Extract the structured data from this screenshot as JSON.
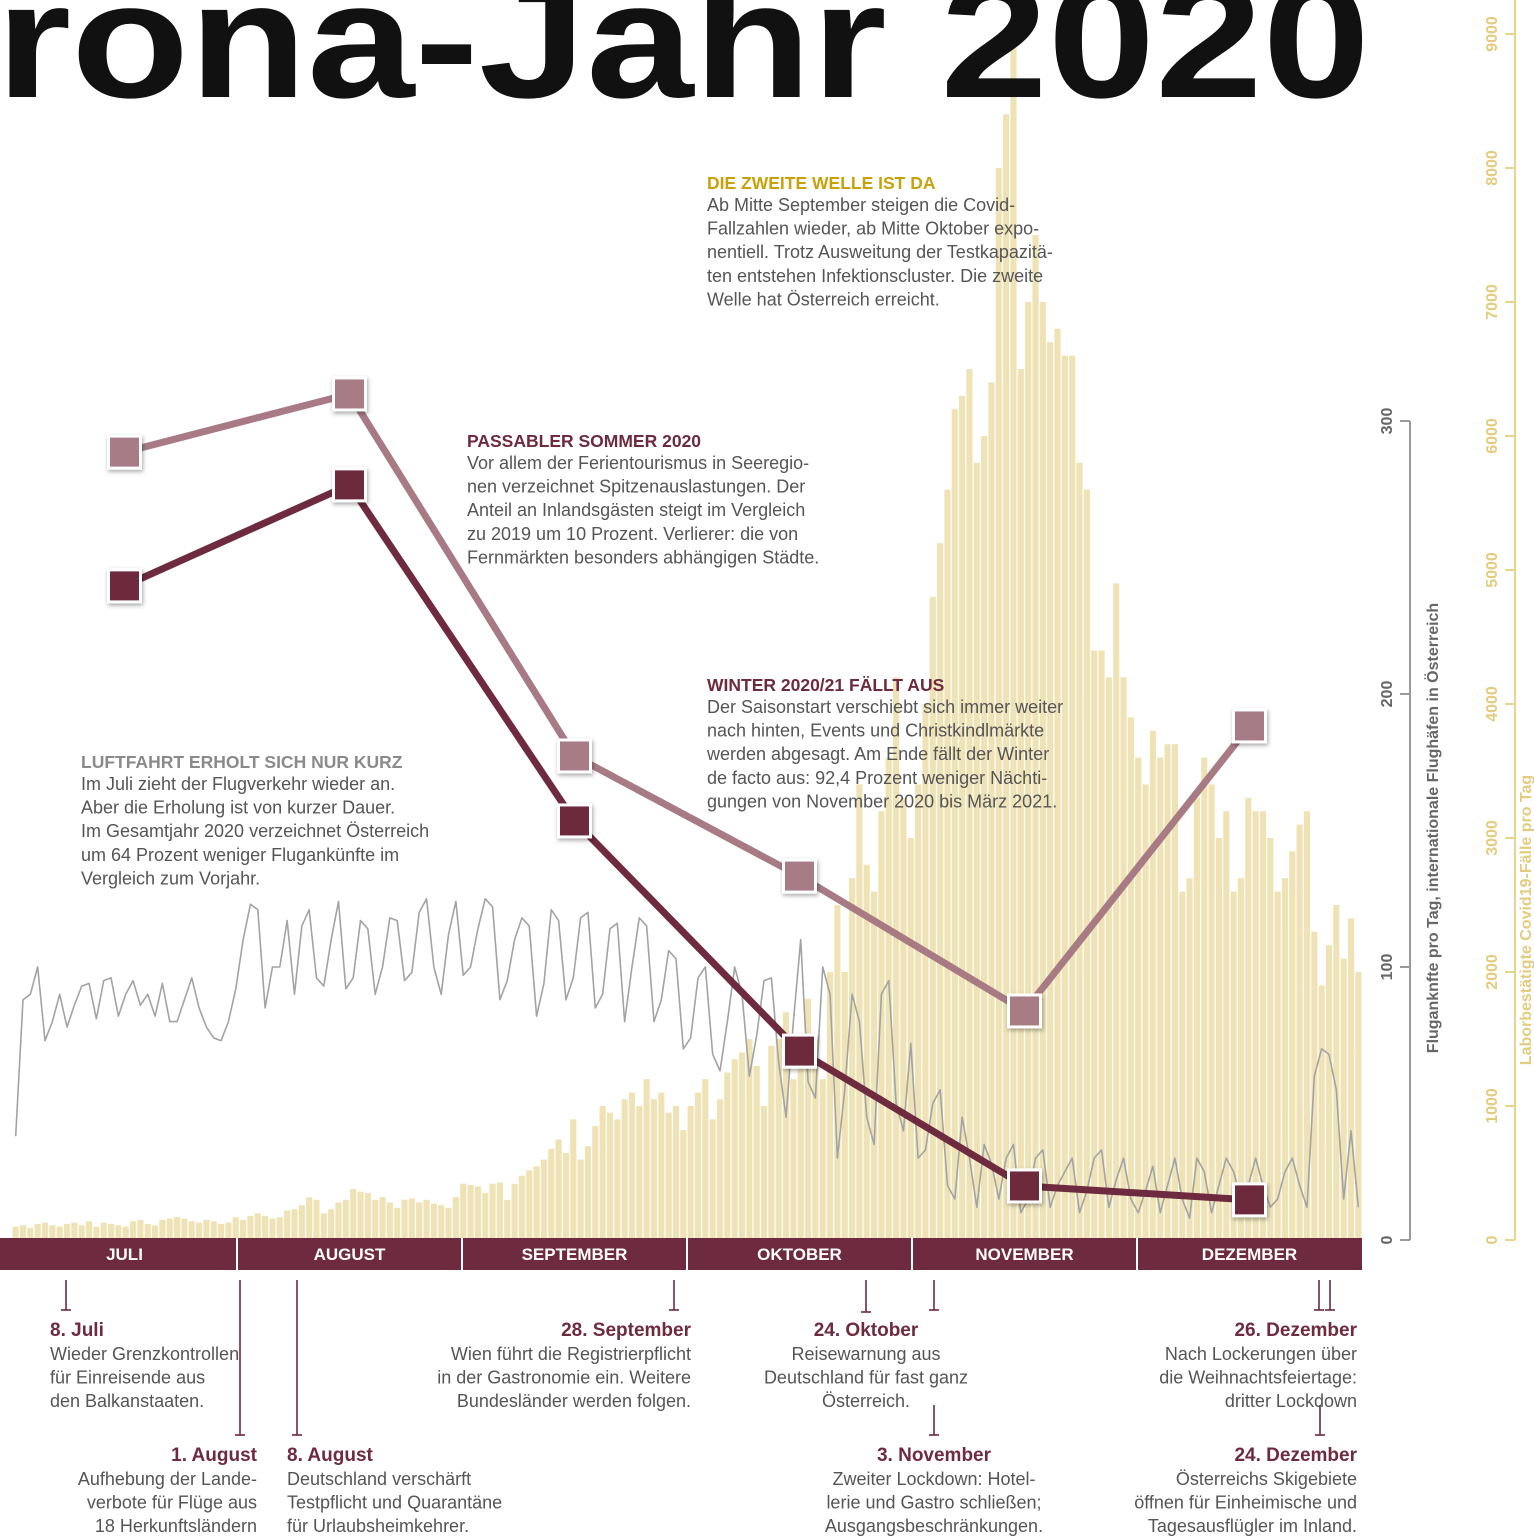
{
  "title": "rona-Jahr 2020",
  "annotations": [
    {
      "title": "DIE ZWEITE WELLE IST DA",
      "lines": [
        "Ab Mitte September steigen die Covid-",
        "Fallzahlen wieder, ab Mitte Oktober expo-",
        "nentiell. Trotz Ausweitung der Testkapazitä-",
        "ten entstehen Infektionscluster. Die zweite",
        "Welle hat Österreich erreicht."
      ]
    },
    {
      "title": "PASSABLER SOMMER 2020",
      "lines": [
        "Vor allem der Ferientourismus in Seeregio-",
        "nen verzeichnet Spitzenauslastungen. Der",
        "Anteil an Inlandsgästen steigt im Vergleich",
        "zu 2019 um 10 Prozent. Verlierer: die von",
        "Fernmärkten besonders abhängigen Städte."
      ]
    },
    {
      "title": "WINTER 2020/21 FÄLLT AUS",
      "lines": [
        "Der Saisonstart verschiebt sich immer weiter",
        "nach hinten, Events und Christkindlmärkte",
        "werden abgesagt. Am Ende fällt der Winter",
        "de facto aus: 92,4 Prozent weniger Nächti-",
        "gungen von November 2020 bis März 2021."
      ]
    },
    {
      "title": "LUFTFAHRT ERHOLT SICH NUR KURZ",
      "lines": [
        "Im Juli zieht der Flugverkehr wieder an.",
        "Aber die Erholung ist von kurzer Dauer.",
        "Im Gesamtjahr 2020 verzeichnet Österreich",
        "um 64 Prozent weniger Flugankünfte im",
        "Vergleich zum Vorjahr."
      ]
    }
  ],
  "events": [
    {
      "date": "8. Juli",
      "lines": [
        "Wieder Grenzkontrollen",
        "für Einreisende aus",
        "den Balkanstaaten."
      ]
    },
    {
      "date": "1. August",
      "lines": [
        "Aufhebung der Lande-",
        "verbote für Flüge aus",
        "18 Herkunftsländern"
      ]
    },
    {
      "date": "8. August",
      "lines": [
        "Deutschland verschärft",
        "Testpflicht und Quarantäne",
        "für Urlaubsheimkehrer."
      ]
    },
    {
      "date": "28. September",
      "lines": [
        "Wien führt die Registrierpflicht",
        "in der Gastronomie ein. Weitere",
        "Bundesländer werden folgen."
      ]
    },
    {
      "date": "24. Oktober",
      "lines": [
        "Reisewarnung aus",
        "Deutschland für fast ganz",
        "Österreich."
      ]
    },
    {
      "date": "3. November",
      "lines": [
        "Zweiter Lockdown: Hotel-",
        "lerie und Gastro schließen;",
        "Ausgangsbeschränkungen."
      ]
    },
    {
      "date": "26. Dezember",
      "lines": [
        "Nach Lockerungen über",
        "die Weihnachtsfeiertage:",
        "dritter Lockdown"
      ]
    },
    {
      "date": "24. Dezember",
      "lines": [
        "Österreichs Skigebiete",
        "öffnen für Einheimische und",
        "Tagesausflügler im Inland."
      ]
    }
  ],
  "chart_data": [
    {
      "type": "bar",
      "y2label": "Laborbestätigte Covid19-Fälle pro Tag",
      "y2lim": [
        0,
        9000
      ],
      "y2ticks": [
        0,
        1000,
        2000,
        3000,
        4000,
        5000,
        6000,
        7000,
        8000,
        9000
      ],
      "series": [
        {
          "axis": "y2",
          "color": "#efe3b5",
          "values": [
            100,
            110,
            90,
            120,
            130,
            110,
            100,
            120,
            130,
            110,
            140,
            100,
            130,
            120,
            110,
            100,
            140,
            150,
            120,
            110,
            150,
            160,
            170,
            160,
            140,
            130,
            150,
            140,
            120,
            130,
            170,
            150,
            180,
            200,
            180,
            160,
            170,
            220,
            230,
            260,
            320,
            300,
            200,
            230,
            280,
            300,
            380,
            360,
            350,
            300,
            320,
            280,
            240,
            300,
            310,
            280,
            300,
            270,
            260,
            240,
            320,
            420,
            410,
            400,
            350,
            420,
            430,
            300,
            420,
            480,
            520,
            550,
            600,
            680,
            750,
            650,
            900,
            600,
            700,
            850,
            1000,
            950,
            900,
            1050,
            1100,
            1000,
            1200,
            1050,
            1100,
            950,
            1000,
            820,
            1000,
            1100,
            1200,
            900,
            1050,
            1250,
            1350,
            1400,
            1500,
            1300,
            1000,
            1450,
            1500,
            1700,
            1200,
            1400,
            1800,
            1500,
            1200,
            2000,
            2500,
            2000,
            2700,
            3400,
            2800,
            2600,
            3200,
            3600,
            4200,
            3300,
            3000,
            3400,
            4000,
            4800,
            5200,
            5600,
            6200,
            6300,
            6500,
            5800,
            6000,
            6400,
            8000,
            8400,
            9000,
            6500,
            7000,
            7500,
            7000,
            6700,
            6800,
            6600,
            6600,
            5800,
            5600,
            4400,
            4400,
            4200,
            4900,
            4200,
            3900,
            3600,
            3400,
            3800,
            3600,
            3700,
            3700,
            2600,
            2700,
            3300,
            3600,
            3400,
            3000,
            3200,
            2600,
            2700,
            3300,
            3200,
            3200,
            3000,
            2600,
            2700,
            2900,
            3100,
            3200,
            2300,
            1900,
            2200,
            2500,
            2100,
            2400,
            2000
          ]
        }
      ]
    },
    {
      "type": "line",
      "ylabel": "Fluganknfte pro Tag, internationale Flughäfen in Österreich",
      "ylim": [
        0,
        300
      ],
      "yticks": [
        0,
        100,
        200,
        300
      ],
      "series": [
        {
          "color": "#a3a3a3",
          "values": [
            38,
            88,
            90,
            100,
            73,
            80,
            90,
            78,
            86,
            93,
            94,
            81,
            95,
            96,
            82,
            90,
            95,
            86,
            90,
            82,
            94,
            80,
            80,
            88,
            96,
            85,
            78,
            74,
            73,
            80,
            92,
            110,
            123,
            121,
            85,
            100,
            100,
            117,
            90,
            115,
            121,
            96,
            93,
            110,
            124,
            92,
            96,
            117,
            114,
            90,
            100,
            118,
            117,
            95,
            98,
            120,
            125,
            100,
            90,
            112,
            124,
            97,
            100,
            114,
            125,
            122,
            88,
            95,
            110,
            118,
            115,
            82,
            94,
            121,
            117,
            88,
            96,
            118,
            120,
            85,
            90,
            114,
            116,
            80,
            100,
            118,
            115,
            80,
            88,
            106,
            103,
            70,
            74,
            96,
            100,
            68,
            62,
            80,
            100,
            90,
            60,
            75,
            95,
            96,
            65,
            45,
            80,
            110,
            58,
            52,
            100,
            90,
            30,
            55,
            90,
            80,
            45,
            35,
            90,
            95,
            50,
            40,
            72,
            30,
            33,
            50,
            55,
            20,
            15,
            45,
            30,
            12,
            35,
            28,
            15,
            30,
            35,
            10,
            15,
            30,
            33,
            12,
            20,
            25,
            30,
            10,
            18,
            30,
            33,
            12,
            22,
            30,
            15,
            10,
            18,
            27,
            10,
            20,
            30,
            15,
            8,
            30,
            25,
            10,
            20,
            30,
            25,
            15,
            20,
            30,
            20,
            12,
            15,
            25,
            30,
            20,
            12,
            60,
            70,
            68,
            55,
            15,
            40,
            12
          ]
        }
      ]
    },
    {
      "type": "line",
      "markers": true,
      "categories": [
        "JULI",
        "AUGUST",
        "SEPTEMBER",
        "OKTOBER",
        "NOVEMBER",
        "DEZEMBER"
      ],
      "series": [
        {
          "color": "#a87b84",
          "values": [
            288.6,
            309.9,
            177.3,
            133.3,
            83.9,
            188.3
          ]
        },
        {
          "color": "#6e2a3e",
          "values": [
            239.6,
            276.6,
            153.5,
            69.2,
            19.8,
            14.7
          ]
        }
      ]
    }
  ]
}
